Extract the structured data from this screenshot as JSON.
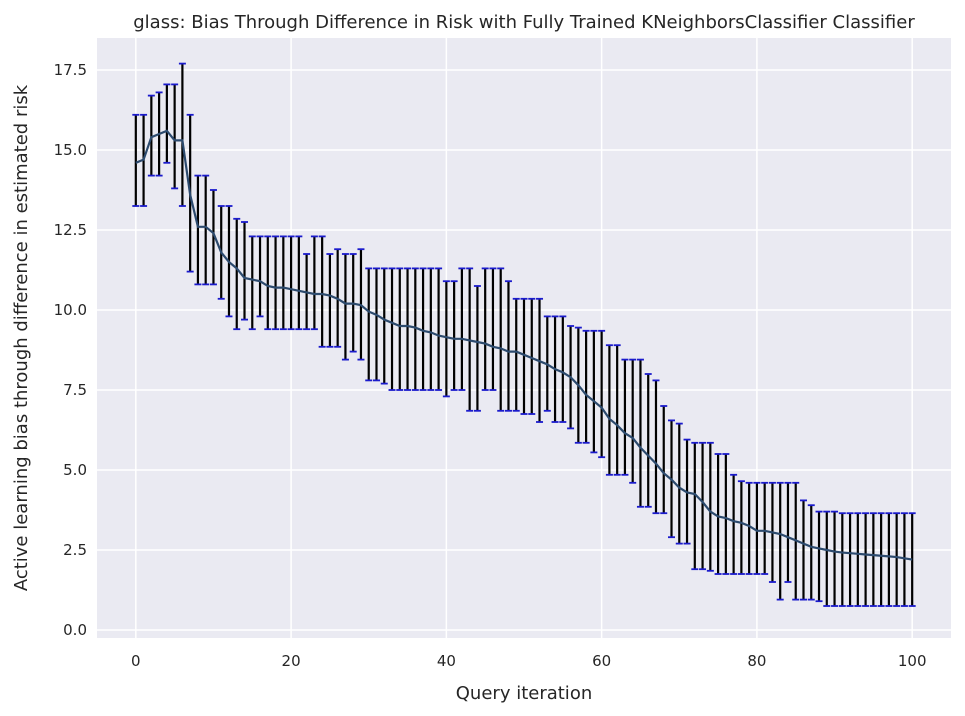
{
  "chart_data": {
    "type": "line",
    "title": "glass: Bias Through Difference in Risk with Fully Trained KNeighborsClassifier Classifier",
    "xlabel": "Query iteration",
    "ylabel": "Active learning bias through difference in estimated risk",
    "xlim": [
      -5,
      105
    ],
    "ylim": [
      -0.25,
      18.5
    ],
    "xticks": [
      0,
      20,
      40,
      60,
      80,
      100
    ],
    "xtick_labels": [
      "0",
      "20",
      "40",
      "60",
      "80",
      "100"
    ],
    "yticks": [
      0.0,
      2.5,
      5.0,
      7.5,
      10.0,
      12.5,
      15.0,
      17.5
    ],
    "ytick_labels": [
      "0.0",
      "2.5",
      "5.0",
      "7.5",
      "10.0",
      "12.5",
      "15.0",
      "17.5"
    ],
    "grid": true,
    "background_color": "#eaeaf2",
    "line_color": "#2c4a6e",
    "errorbar_color": "#000000",
    "cap_color": "#1a1acc",
    "x": [
      0,
      1,
      2,
      3,
      4,
      5,
      6,
      7,
      8,
      9,
      10,
      11,
      12,
      13,
      14,
      15,
      16,
      17,
      18,
      19,
      20,
      21,
      22,
      23,
      24,
      25,
      26,
      27,
      28,
      29,
      30,
      31,
      32,
      33,
      34,
      35,
      36,
      37,
      38,
      39,
      40,
      41,
      42,
      43,
      44,
      45,
      46,
      47,
      48,
      49,
      50,
      51,
      52,
      53,
      54,
      55,
      56,
      57,
      58,
      59,
      60,
      61,
      62,
      63,
      64,
      65,
      66,
      67,
      68,
      69,
      70,
      71,
      72,
      73,
      74,
      75,
      76,
      77,
      78,
      79,
      80,
      81,
      82,
      83,
      84,
      85,
      86,
      87,
      88,
      89,
      90,
      91,
      92,
      93,
      94,
      95,
      96,
      97,
      98,
      99,
      100
    ],
    "mean": [
      14.6,
      14.7,
      15.4,
      15.5,
      15.6,
      15.3,
      15.3,
      13.6,
      12.6,
      12.6,
      12.4,
      11.8,
      11.5,
      11.3,
      11.0,
      10.95,
      10.9,
      10.75,
      10.7,
      10.7,
      10.65,
      10.6,
      10.55,
      10.5,
      10.5,
      10.45,
      10.35,
      10.2,
      10.2,
      10.15,
      9.95,
      9.85,
      9.7,
      9.6,
      9.5,
      9.5,
      9.45,
      9.35,
      9.3,
      9.2,
      9.15,
      9.1,
      9.1,
      9.05,
      9.0,
      8.95,
      8.85,
      8.8,
      8.7,
      8.7,
      8.6,
      8.5,
      8.4,
      8.3,
      8.15,
      8.05,
      7.9,
      7.65,
      7.35,
      7.15,
      6.95,
      6.6,
      6.4,
      6.15,
      6.0,
      5.7,
      5.45,
      5.2,
      4.9,
      4.7,
      4.45,
      4.3,
      4.25,
      4.0,
      3.7,
      3.55,
      3.5,
      3.4,
      3.35,
      3.25,
      3.1,
      3.1,
      3.05,
      3.0,
      2.9,
      2.8,
      2.7,
      2.6,
      2.55,
      2.5,
      2.45,
      2.42,
      2.4,
      2.38,
      2.36,
      2.34,
      2.32,
      2.3,
      2.28,
      2.24,
      2.2
    ],
    "lower": [
      13.25,
      13.25,
      14.2,
      14.2,
      14.6,
      13.8,
      13.25,
      11.2,
      10.8,
      10.8,
      10.8,
      10.35,
      9.8,
      9.4,
      9.7,
      9.4,
      9.8,
      9.4,
      9.4,
      9.4,
      9.4,
      9.4,
      9.4,
      9.4,
      8.85,
      8.85,
      8.85,
      8.45,
      8.7,
      8.45,
      7.8,
      7.8,
      7.7,
      7.5,
      7.5,
      7.5,
      7.5,
      7.5,
      7.5,
      7.5,
      7.3,
      7.5,
      7.5,
      6.85,
      6.85,
      7.5,
      7.5,
      6.85,
      6.85,
      6.85,
      6.75,
      6.75,
      6.5,
      6.85,
      6.5,
      6.5,
      6.3,
      5.85,
      5.85,
      5.55,
      5.4,
      4.85,
      4.85,
      4.85,
      4.6,
      3.85,
      3.85,
      3.65,
      3.65,
      2.9,
      2.7,
      2.7,
      1.9,
      1.9,
      1.85,
      1.75,
      1.75,
      1.75,
      1.75,
      1.75,
      1.75,
      1.75,
      1.5,
      0.95,
      1.5,
      0.95,
      0.95,
      0.95,
      0.9,
      0.75,
      0.75,
      0.75,
      0.75,
      0.75,
      0.75,
      0.75,
      0.75,
      0.75,
      0.75,
      0.75,
      0.75
    ],
    "upper": [
      16.1,
      16.1,
      16.7,
      16.8,
      17.05,
      17.05,
      17.7,
      16.1,
      14.2,
      14.2,
      13.75,
      13.25,
      13.25,
      12.85,
      12.75,
      12.3,
      12.3,
      12.3,
      12.3,
      12.3,
      12.3,
      12.3,
      11.75,
      12.3,
      12.3,
      11.75,
      11.9,
      11.75,
      11.75,
      11.9,
      11.3,
      11.3,
      11.3,
      11.3,
      11.3,
      11.3,
      11.3,
      11.3,
      11.3,
      11.3,
      10.9,
      10.9,
      11.3,
      11.3,
      10.75,
      11.3,
      11.3,
      11.3,
      10.9,
      10.35,
      10.35,
      10.35,
      10.35,
      9.8,
      9.8,
      9.8,
      9.5,
      9.45,
      9.35,
      9.35,
      9.35,
      8.9,
      8.9,
      8.45,
      8.45,
      8.45,
      8.0,
      7.8,
      7.0,
      6.55,
      6.45,
      5.95,
      5.85,
      5.85,
      5.85,
      5.5,
      5.5,
      4.85,
      4.65,
      4.6,
      4.6,
      4.6,
      4.6,
      4.6,
      4.6,
      4.6,
      4.05,
      3.9,
      3.7,
      3.7,
      3.7,
      3.65,
      3.65,
      3.65,
      3.65,
      3.65,
      3.65,
      3.65,
      3.65,
      3.65,
      3.65
    ]
  }
}
